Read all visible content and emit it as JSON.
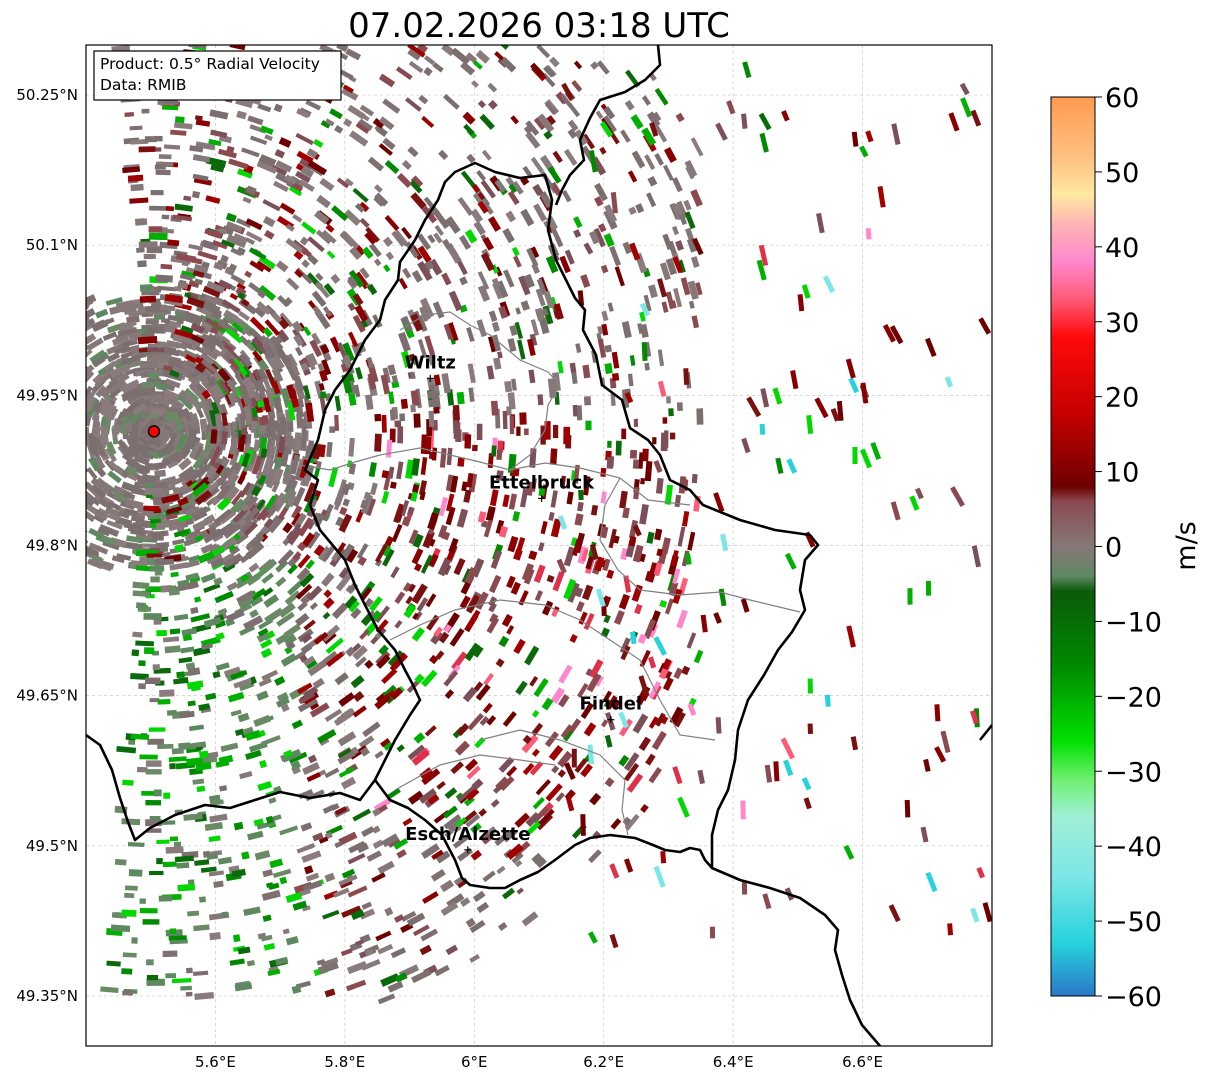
{
  "title": "07.02.2026 03:18 UTC",
  "info": {
    "product": "Product: 0.5° Radial Velocity",
    "data": "Data: RMIB"
  },
  "map": {
    "lon_range": [
      5.4,
      6.8
    ],
    "lat_range": [
      49.3,
      50.3
    ],
    "lon_ticks": [
      {
        "value": 5.6,
        "label": "5.6°E"
      },
      {
        "value": 5.8,
        "label": "5.8°E"
      },
      {
        "value": 6.0,
        "label": "6°E"
      },
      {
        "value": 6.2,
        "label": "6.2°E"
      },
      {
        "value": 6.4,
        "label": "6.4°E"
      },
      {
        "value": 6.6,
        "label": "6.6°E"
      }
    ],
    "lat_ticks": [
      {
        "value": 50.25,
        "label": "50.25°N"
      },
      {
        "value": 50.1,
        "label": "50.1°N"
      },
      {
        "value": 49.95,
        "label": "49.95°N"
      },
      {
        "value": 49.8,
        "label": "49.8°N"
      },
      {
        "value": 49.65,
        "label": "49.65°N"
      },
      {
        "value": 49.5,
        "label": "49.5°N"
      },
      {
        "value": 49.35,
        "label": "49.35°N"
      }
    ],
    "radar_site": {
      "lon": 5.505,
      "lat": 49.914
    },
    "cities": [
      {
        "name": "Wiltz",
        "lon": 5.932,
        "lat": 49.967
      },
      {
        "name": "Ettelbruck",
        "lon": 6.104,
        "lat": 49.847
      },
      {
        "name": "Findel",
        "lon": 6.211,
        "lat": 49.626
      },
      {
        "name": "Esch/Alzette",
        "lon": 5.99,
        "lat": 49.496
      }
    ],
    "border_color": "#000000",
    "canton_color": "#808080",
    "grid": true
  },
  "colorbar": {
    "label": "m/s",
    "min": -60,
    "max": 60,
    "ticks": [
      {
        "value": 60,
        "label": "60"
      },
      {
        "value": 50,
        "label": "50"
      },
      {
        "value": 40,
        "label": "40"
      },
      {
        "value": 30,
        "label": "30"
      },
      {
        "value": 20,
        "label": "20"
      },
      {
        "value": 10,
        "label": "10"
      },
      {
        "value": 0,
        "label": "0"
      },
      {
        "value": -10,
        "label": "−10"
      },
      {
        "value": -20,
        "label": "−20"
      },
      {
        "value": -30,
        "label": "−30"
      },
      {
        "value": -40,
        "label": "−40"
      },
      {
        "value": -50,
        "label": "−50"
      },
      {
        "value": -60,
        "label": "−60"
      }
    ],
    "stops": [
      {
        "value": 60,
        "color": "#ff9a50"
      },
      {
        "value": 52,
        "color": "#ffc080"
      },
      {
        "value": 47,
        "color": "#ffe9a0"
      },
      {
        "value": 43,
        "color": "#ffb4b4"
      },
      {
        "value": 38,
        "color": "#ff88cc"
      },
      {
        "value": 33,
        "color": "#ff5a78"
      },
      {
        "value": 28,
        "color": "#ff0a0a"
      },
      {
        "value": 18,
        "color": "#c80000"
      },
      {
        "value": 8,
        "color": "#6e0000"
      },
      {
        "value": 6,
        "color": "#8a4a50"
      },
      {
        "value": 0,
        "color": "#867878"
      },
      {
        "value": -4,
        "color": "#5e8860"
      },
      {
        "value": -6,
        "color": "#0a5a0a"
      },
      {
        "value": -16,
        "color": "#008a00"
      },
      {
        "value": -26,
        "color": "#00e000"
      },
      {
        "value": -31,
        "color": "#6cf06c"
      },
      {
        "value": -36,
        "color": "#a0f0d8"
      },
      {
        "value": -44,
        "color": "#7de6e6"
      },
      {
        "value": -53,
        "color": "#26d2dc"
      },
      {
        "value": -60,
        "color": "#2a78c8"
      }
    ]
  }
}
